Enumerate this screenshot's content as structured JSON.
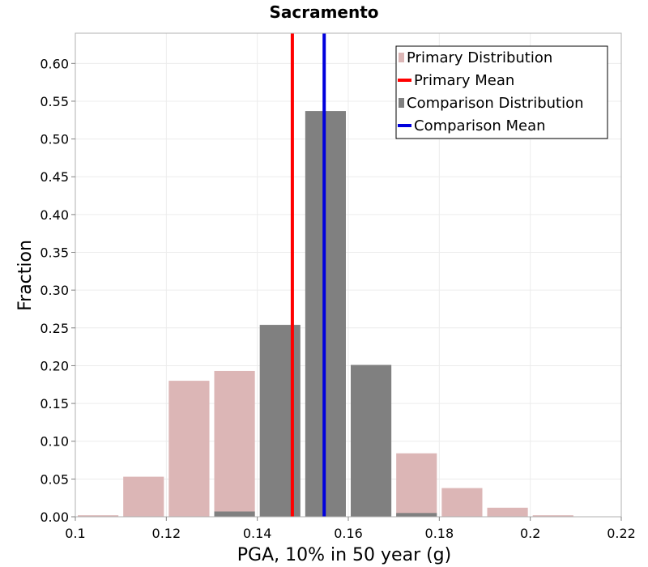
{
  "chart_data": {
    "type": "bar",
    "title": "Sacramento",
    "xlabel": "PGA, 10% in 50 year (g)",
    "ylabel": "Fraction",
    "xlim": [
      0.1,
      0.22
    ],
    "ylim": [
      0,
      0.64
    ],
    "x_ticks": [
      0.1,
      0.12,
      0.14,
      0.16,
      0.18,
      0.2,
      0.22
    ],
    "x_tick_labels": [
      "0.1",
      "0.12",
      "0.14",
      "0.16",
      "0.18",
      "0.2",
      "0.22"
    ],
    "y_ticks": [
      0,
      0.05,
      0.1,
      0.15,
      0.2,
      0.25,
      0.3,
      0.35,
      0.4,
      0.45,
      0.5,
      0.55,
      0.6
    ],
    "y_tick_labels": [
      "0.00",
      "0.05",
      "0.10",
      "0.15",
      "0.20",
      "0.25",
      "0.30",
      "0.35",
      "0.40",
      "0.45",
      "0.50",
      "0.55",
      "0.60"
    ],
    "grid": true,
    "legend_position": "top-right",
    "series": [
      {
        "name": "Primary Distribution",
        "kind": "histogram",
        "color": "#dcb6b6",
        "bins": [
          {
            "x0": 0.1,
            "x1": 0.11,
            "value": 0.002
          },
          {
            "x0": 0.11,
            "x1": 0.12,
            "value": 0.053
          },
          {
            "x0": 0.12,
            "x1": 0.13,
            "value": 0.18
          },
          {
            "x0": 0.13,
            "x1": 0.14,
            "value": 0.193
          },
          {
            "x0": 0.17,
            "x1": 0.18,
            "value": 0.084
          },
          {
            "x0": 0.18,
            "x1": 0.19,
            "value": 0.038
          },
          {
            "x0": 0.19,
            "x1": 0.2,
            "value": 0.012
          },
          {
            "x0": 0.2,
            "x1": 0.21,
            "value": 0.002
          }
        ]
      },
      {
        "name": "Comparison Distribution",
        "kind": "histogram",
        "color": "#808080",
        "bins": [
          {
            "x0": 0.13,
            "x1": 0.14,
            "value": 0.007
          },
          {
            "x0": 0.14,
            "x1": 0.15,
            "value": 0.254
          },
          {
            "x0": 0.15,
            "x1": 0.16,
            "value": 0.537
          },
          {
            "x0": 0.16,
            "x1": 0.17,
            "value": 0.201
          },
          {
            "x0": 0.17,
            "x1": 0.18,
            "value": 0.005
          }
        ]
      },
      {
        "name": "Primary Mean",
        "kind": "vline",
        "color": "#ff0000",
        "x": 0.1477
      },
      {
        "name": "Comparison Mean",
        "kind": "vline",
        "color": "#0000dd",
        "x": 0.1547
      }
    ],
    "legend": [
      {
        "label": "Primary Distribution",
        "swatch": "box",
        "color": "#dcb6b6"
      },
      {
        "label": "Primary Mean",
        "swatch": "line",
        "color": "#ff0000"
      },
      {
        "label": "Comparison Distribution",
        "swatch": "box",
        "color": "#808080"
      },
      {
        "label": "Comparison Mean",
        "swatch": "line",
        "color": "#0000dd"
      }
    ]
  }
}
